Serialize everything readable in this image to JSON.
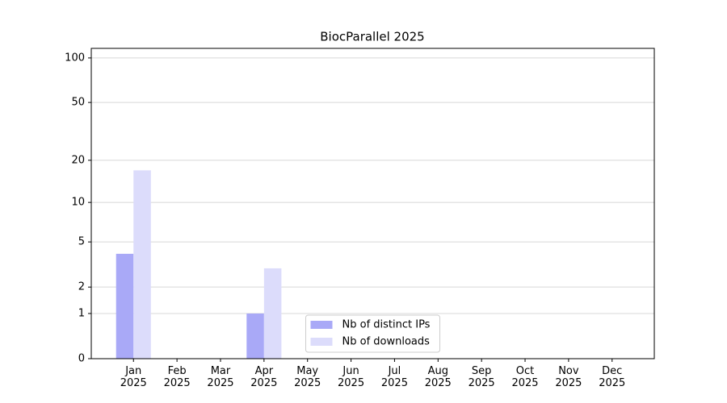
{
  "chart_data": {
    "type": "bar",
    "title": "BiocParallel 2025",
    "categories": [
      "Jan 2025",
      "Feb 2025",
      "Mar 2025",
      "Apr 2025",
      "May 2025",
      "Jun 2025",
      "Jul 2025",
      "Aug 2025",
      "Sep 2025",
      "Oct 2025",
      "Nov 2025",
      "Dec 2025"
    ],
    "series": [
      {
        "name": "Nb of distinct IPs",
        "color": "#a9a9f7",
        "values": [
          4,
          0,
          0,
          1,
          0,
          0,
          0,
          0,
          0,
          0,
          0,
          0
        ]
      },
      {
        "name": "Nb of downloads",
        "color": "#dcdcfb",
        "values": [
          17,
          0,
          0,
          3,
          0,
          0,
          0,
          0,
          0,
          0,
          0,
          0
        ]
      }
    ],
    "yscale": "log1p",
    "ylim": [
      0,
      116
    ],
    "yticks": [
      0,
      1,
      2,
      5,
      10,
      20,
      50,
      100
    ],
    "grid": true,
    "legend": "lower center"
  }
}
